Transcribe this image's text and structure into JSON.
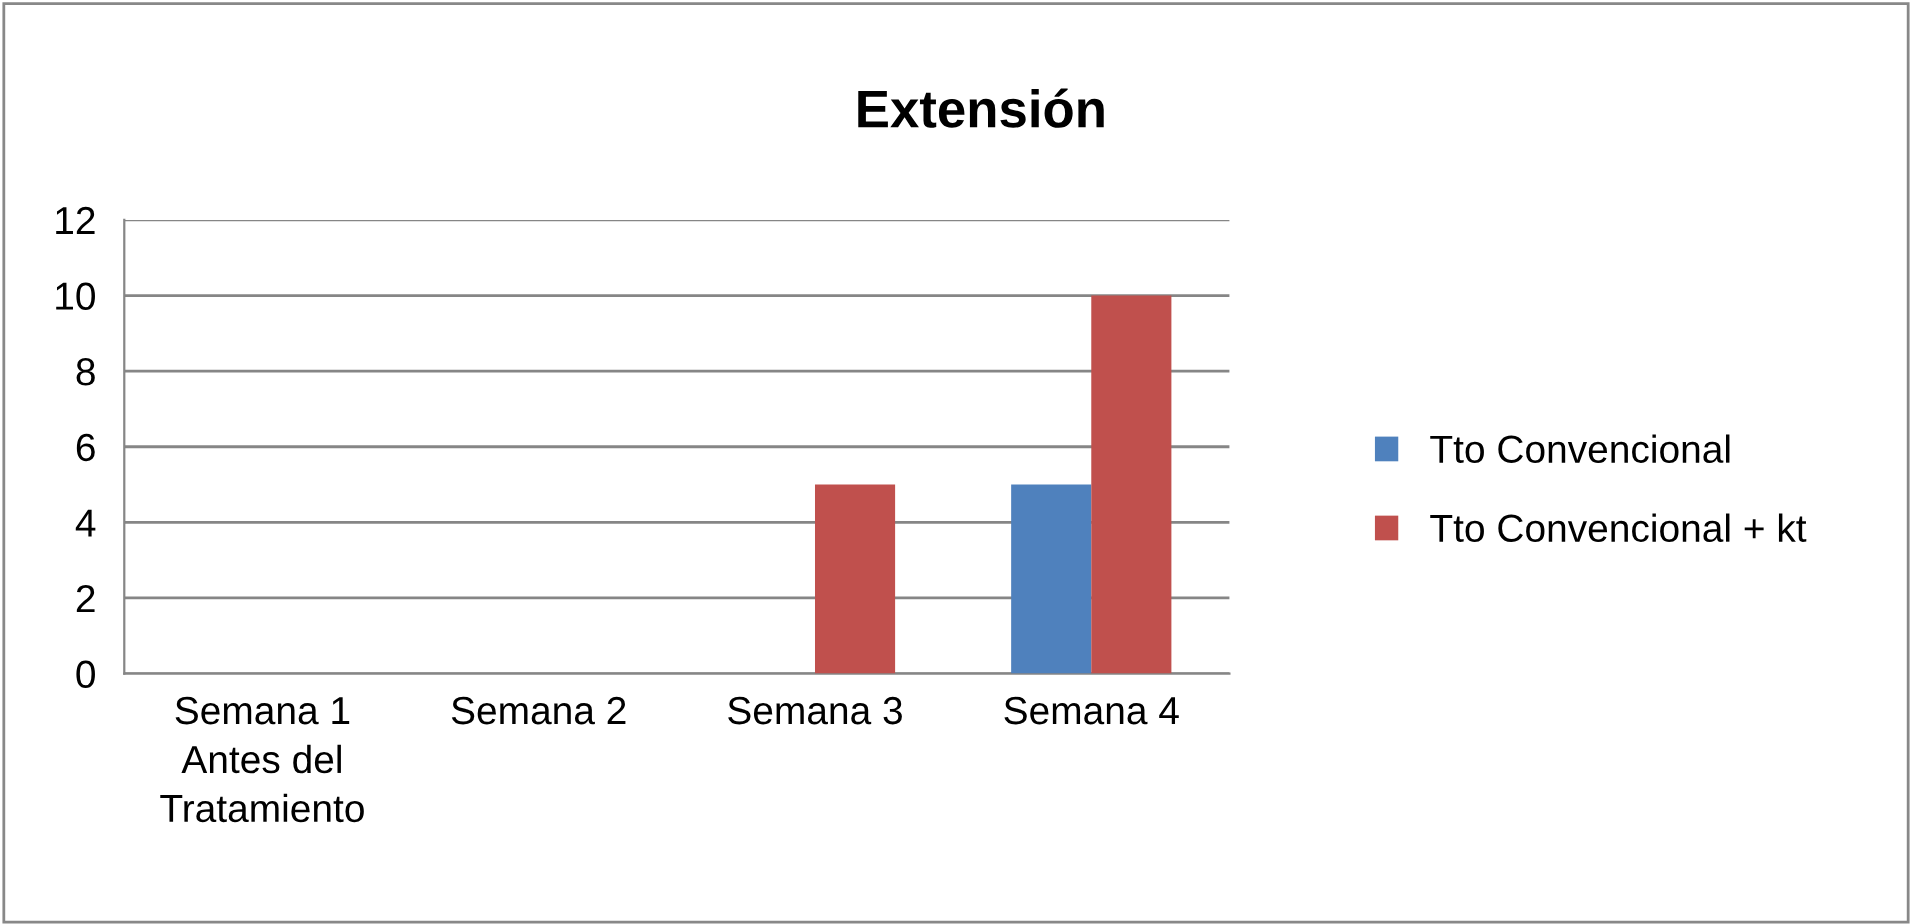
{
  "chart_data": {
    "type": "bar",
    "title": "Extensión",
    "categories": [
      "Semana 1\nAntes del\nTratamiento",
      "Semana 2",
      "Semana 3",
      "Semana 4"
    ],
    "series": [
      {
        "name": "Tto Convencional",
        "color": "#4f81bd",
        "values": [
          0,
          0,
          0,
          5
        ]
      },
      {
        "name": "Tto Convencional + kt",
        "color": "#c0504d",
        "values": [
          0,
          0,
          5,
          10
        ]
      }
    ],
    "ylim": [
      0,
      12
    ],
    "yticks": [
      0,
      2,
      4,
      6,
      8,
      10,
      12
    ],
    "grid": "y",
    "legend": "right"
  }
}
